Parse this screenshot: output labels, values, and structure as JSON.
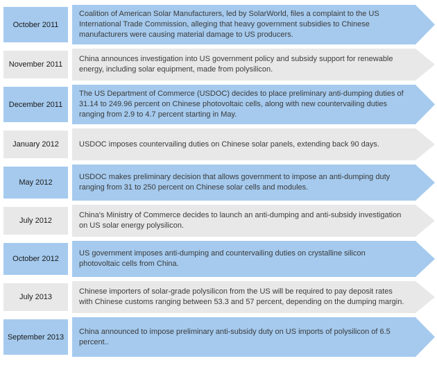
{
  "colors": {
    "blue": "#a5caee",
    "gray": "#e8e8e8",
    "date_text": "#1a1a1a",
    "body_text": "#3b3b3b",
    "page_bg": "#ffffff"
  },
  "timeline": {
    "rows": [
      {
        "date": "October 2011",
        "variant": "blue",
        "text": "Coalition of American Solar Manufacturers, led by SolarWorld, files a complaint to the US International Trade Commission, alleging that heavy government subsidies to Chinese manufacturers were causing material damage to US producers."
      },
      {
        "date": "November 2011",
        "variant": "gray",
        "text": "China announces investigation into US government policy and subsidy support for renewable energy, including solar equipment, made from polysilicon."
      },
      {
        "date": "December 2011",
        "variant": "blue",
        "text": "The US Department of Commerce (USDOC) decides to place preliminary anti-dumping duties of 31.14 to 249.96 percent on Chinese photovoltaic cells, along with new countervailing duties ranging from 2.9 to 4.7 percent starting in May."
      },
      {
        "date": "January 2012",
        "variant": "gray",
        "text": "USDOC imposes countervailing duties on Chinese solar panels, extending back 90 days."
      },
      {
        "date": "May 2012",
        "variant": "blue",
        "text": "USDOC makes preliminary decision that allows government to impose an anti-dumping duty ranging from 31 to 250 percent on Chinese solar cells and modules."
      },
      {
        "date": "July 2012",
        "variant": "gray",
        "text": "China's Ministry of Commerce decides to launch an anti-dumping and anti-subsidy investigation on US solar energy polysilicon."
      },
      {
        "date": "October 2012",
        "variant": "blue",
        "text": "US government imposes anti-dumping and countervailing duties on crystalline silicon photovoltaic cells from China."
      },
      {
        "date": "July 2013",
        "variant": "gray",
        "text": "Chinese importers of solar-grade polysilicon from the US will be required to pay deposit rates with Chinese customs ranging between 53.3 and 57 percent, depending on the dumping margin."
      },
      {
        "date": "September 2013",
        "variant": "blue",
        "text": "China announced to impose preliminary anti-subsidy duty on US imports of polysilicon of 6.5 percent.."
      }
    ]
  }
}
